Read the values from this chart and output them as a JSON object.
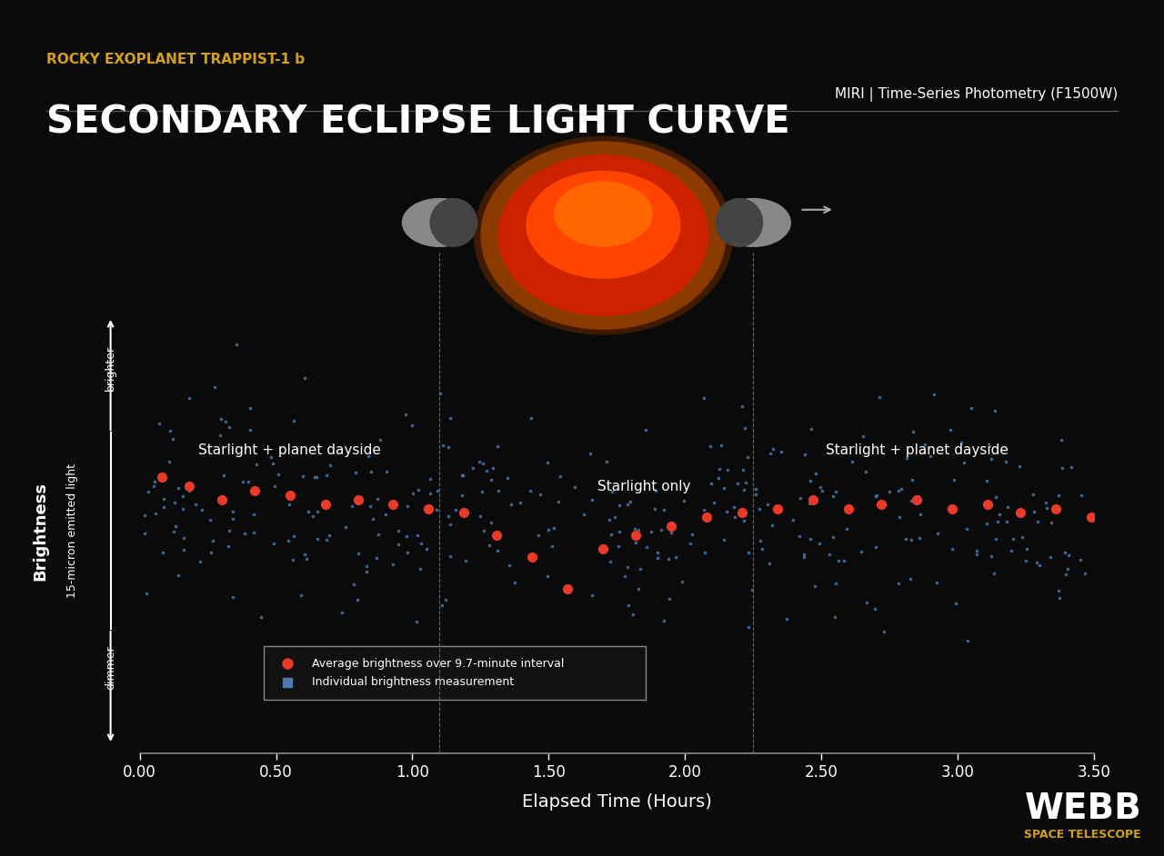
{
  "bg_color": "#0a0a0a",
  "title_subtitle": "ROCKY EXOPLANET TRAPPIST-1 b",
  "title_main": "SECONDARY ECLIPSE LIGHT CURVE",
  "title_subtitle_color": "#d4a017",
  "title_main_color": "#ffffff",
  "instrument_label": "MIRI | Time-Series Photometry (F1500W)",
  "xlabel": "Elapsed Time (Hours)",
  "ylabel_main": "Brightness",
  "ylabel_sub": "15-micron emitted light",
  "ylabel_brighter": "brighter",
  "ylabel_dimmer": "dimmer",
  "xlim": [
    0.0,
    3.5
  ],
  "ylim": [
    0.0,
    1.0
  ],
  "xticks": [
    0.0,
    0.5,
    1.0,
    1.5,
    2.0,
    2.5,
    3.0,
    3.5
  ],
  "xtick_labels": [
    "0.00",
    "0.50",
    "1.00",
    "1.50",
    "2.00",
    "2.50",
    "3.00",
    "3.50"
  ],
  "red_dot_color": "#e8392a",
  "blue_dot_color": "#4a7aaf",
  "annotation_color": "#ffffff",
  "red_dots_x": [
    0.08,
    0.18,
    0.3,
    0.42,
    0.55,
    0.68,
    0.8,
    0.93,
    1.06,
    1.19,
    1.31,
    1.44,
    1.57,
    1.7,
    1.82,
    1.95,
    2.08,
    2.21,
    2.34,
    2.47,
    2.6,
    2.72,
    2.85,
    2.98,
    3.11,
    3.23,
    3.36,
    3.49
  ],
  "red_dots_y_normalized": [
    0.62,
    0.6,
    0.57,
    0.59,
    0.58,
    0.56,
    0.57,
    0.56,
    0.55,
    0.54,
    0.49,
    0.44,
    0.37,
    0.46,
    0.49,
    0.51,
    0.53,
    0.54,
    0.55,
    0.57,
    0.55,
    0.56,
    0.57,
    0.55,
    0.56,
    0.54,
    0.55,
    0.53
  ],
  "legend_label1": "Average brightness over 9.7-minute interval",
  "legend_label2": "Individual brightness measurement",
  "webb_text": "WEBB",
  "webb_sub": "SPACE TELESCOPE",
  "separator_color": "#555555"
}
